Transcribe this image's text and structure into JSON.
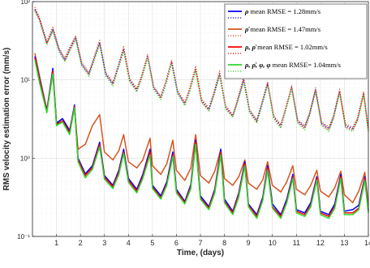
{
  "chart_data": {
    "type": "line",
    "xlabel": "Time, (days)",
    "ylabel": "RMS velocity estimation error (mm/s)",
    "xlim": [
      0,
      14
    ],
    "ylim": [
      0.1,
      100
    ],
    "yscale": "log",
    "grid": true,
    "legend_position": "top-right",
    "x_ticks": [
      1,
      2,
      3,
      4,
      5,
      6,
      7,
      8,
      9,
      10,
      11,
      12,
      13,
      14
    ],
    "x_tick_labels": [
      "1",
      "2",
      "3",
      "4",
      "5",
      "6",
      "7",
      "8",
      "9",
      "10",
      "11",
      "12",
      "13",
      "14"
    ],
    "y_ticks": [
      0.1,
      1,
      10,
      100
    ],
    "y_tick_labels": [
      "10⁻¹",
      "10⁰",
      "10¹",
      "10²"
    ],
    "series": [
      {
        "name": "ρ mean RMSE = 1.28mm/s",
        "color": "#0000ff",
        "style": "solid",
        "x": [
          0.1,
          0.3,
          0.6,
          0.85,
          1.0,
          1.25,
          1.55,
          1.75,
          1.9,
          2.2,
          2.5,
          2.8,
          3.0,
          3.35,
          3.6,
          3.8,
          4.0,
          4.35,
          4.6,
          4.9,
          5.0,
          5.35,
          5.6,
          5.85,
          6.0,
          6.35,
          6.6,
          6.8,
          7.0,
          7.35,
          7.6,
          7.85,
          8.0,
          8.35,
          8.6,
          8.85,
          9.0,
          9.35,
          9.6,
          9.8,
          10.0,
          10.35,
          10.6,
          10.85,
          11.0,
          11.35,
          11.6,
          11.85,
          12.0,
          12.35,
          12.6,
          12.85,
          13.0,
          13.35,
          13.6,
          13.85,
          14.0
        ],
        "values": [
          20,
          10,
          4.0,
          14,
          2.8,
          3.2,
          2.2,
          4.8,
          1.0,
          0.63,
          0.8,
          1.6,
          0.6,
          0.45,
          0.7,
          1.3,
          0.55,
          0.4,
          0.62,
          1.3,
          0.45,
          0.33,
          0.5,
          1.2,
          0.4,
          0.28,
          0.46,
          1.7,
          0.33,
          0.24,
          0.4,
          1.3,
          0.3,
          0.21,
          0.36,
          0.9,
          0.26,
          0.19,
          0.32,
          0.8,
          0.26,
          0.19,
          0.3,
          0.62,
          0.22,
          0.2,
          0.27,
          0.58,
          0.21,
          0.19,
          0.26,
          0.62,
          0.21,
          0.22,
          0.25,
          0.58,
          0.22
        ]
      },
      {
        "name": "ρ mean RMSE = 1.28mm/s",
        "color": "#0000ff",
        "style": "dotted",
        "x": [
          0.1,
          0.3,
          0.6,
          0.85,
          1.1,
          1.35,
          1.55,
          1.8,
          2.05,
          2.35,
          2.55,
          2.8,
          3.05,
          3.35,
          3.55,
          3.8,
          4.05,
          4.35,
          4.55,
          4.8,
          5.05,
          5.35,
          5.55,
          5.8,
          6.05,
          6.35,
          6.55,
          6.8,
          7.05,
          7.35,
          7.55,
          7.8,
          8.05,
          8.35,
          8.55,
          8.8,
          9.05,
          9.35,
          9.55,
          9.8,
          10.05,
          10.35,
          10.55,
          10.8,
          11.05,
          11.35,
          11.55,
          11.8,
          12.05,
          12.35,
          12.55,
          12.8,
          13.05,
          13.35,
          13.55,
          13.8,
          14.0
        ],
        "values": [
          80,
          60,
          30,
          45,
          25,
          18,
          25,
          35,
          16,
          12,
          18,
          30,
          12,
          9,
          14,
          25,
          10,
          7.5,
          11,
          20,
          8,
          6,
          9,
          17,
          7,
          5,
          7.5,
          14,
          5.5,
          4.2,
          6.5,
          12,
          4.5,
          3.5,
          5.5,
          10,
          4.0,
          3.0,
          4.8,
          9.0,
          3.4,
          2.6,
          4.2,
          8.0,
          3.0,
          2.5,
          3.7,
          7.5,
          2.8,
          2.4,
          3.4,
          7.2,
          2.6,
          2.4,
          3.2,
          6.8,
          2.3
        ]
      },
      {
        "name": "ρ̇ mean RMSE = 1.47mm/s",
        "color": "#d9531e",
        "style": "solid",
        "x": [
          0.1,
          0.3,
          0.6,
          0.85,
          1.0,
          1.25,
          1.55,
          1.75,
          1.9,
          2.2,
          2.5,
          2.8,
          3.0,
          3.35,
          3.6,
          3.8,
          4.0,
          4.35,
          4.6,
          4.9,
          5.0,
          5.35,
          5.6,
          5.85,
          6.0,
          6.35,
          6.6,
          6.8,
          7.0,
          7.35,
          7.6,
          7.85,
          8.0,
          8.35,
          8.6,
          8.85,
          9.0,
          9.35,
          9.6,
          9.8,
          10.0,
          10.35,
          10.6,
          10.85,
          11.0,
          11.35,
          11.6,
          11.85,
          12.0,
          12.35,
          12.6,
          12.85,
          13.0,
          13.35,
          13.6,
          13.85,
          14.0
        ],
        "values": [
          22,
          11,
          4.2,
          12,
          2.8,
          3.2,
          2.3,
          4.3,
          1.3,
          1.5,
          2.6,
          3.6,
          1.2,
          0.95,
          1.25,
          2.0,
          0.9,
          0.75,
          0.95,
          1.8,
          0.8,
          0.62,
          0.85,
          1.7,
          0.7,
          0.52,
          0.75,
          2.0,
          0.6,
          0.48,
          0.68,
          1.3,
          0.55,
          0.45,
          0.58,
          0.95,
          0.48,
          0.4,
          0.53,
          0.9,
          0.45,
          0.37,
          0.5,
          0.8,
          0.4,
          0.34,
          0.45,
          0.7,
          0.38,
          0.32,
          0.42,
          0.68,
          0.34,
          0.27,
          0.38,
          0.66,
          0.25
        ]
      },
      {
        "name": "ρ̇ mean RMSE = 1.47mm/s",
        "color": "#d9531e",
        "style": "dotted",
        "x": [
          0.1,
          0.3,
          0.6,
          0.85,
          1.1,
          1.35,
          1.55,
          1.8,
          2.05,
          2.35,
          2.55,
          2.8,
          3.05,
          3.35,
          3.55,
          3.8,
          4.05,
          4.35,
          4.55,
          4.8,
          5.05,
          5.35,
          5.55,
          5.8,
          6.05,
          6.35,
          6.55,
          6.8,
          7.05,
          7.35,
          7.55,
          7.8,
          8.05,
          8.35,
          8.55,
          8.8,
          9.05,
          9.35,
          9.55,
          9.8,
          10.05,
          10.35,
          10.55,
          10.8,
          11.05,
          11.35,
          11.55,
          11.8,
          12.05,
          12.35,
          12.55,
          12.8,
          13.05,
          13.35,
          13.55,
          13.8,
          14.0
        ],
        "values": [
          85,
          62,
          31,
          48,
          26,
          19,
          26,
          37,
          17,
          12.5,
          19,
          32,
          12.5,
          9.4,
          14.5,
          27,
          10.5,
          7.8,
          11.5,
          21,
          8.3,
          6.2,
          9.4,
          18,
          7.3,
          5.2,
          7.8,
          15,
          5.7,
          4.4,
          6.8,
          13,
          4.7,
          3.6,
          5.7,
          11,
          4.2,
          3.1,
          5.0,
          9.5,
          3.5,
          2.7,
          4.4,
          8.4,
          3.1,
          2.6,
          3.8,
          7.9,
          2.9,
          2.5,
          3.5,
          7.6,
          2.7,
          2.5,
          3.3,
          7.1,
          2.4
        ]
      },
      {
        "name": "ρ, ρ̇ mean RMSE = 1.02mm/s",
        "color": "#ff0000",
        "style": "solid",
        "x": [
          0.1,
          0.3,
          0.6,
          0.85,
          1.0,
          1.25,
          1.55,
          1.75,
          1.9,
          2.2,
          2.5,
          2.8,
          3.0,
          3.35,
          3.6,
          3.8,
          4.0,
          4.35,
          4.6,
          4.9,
          5.0,
          5.35,
          5.6,
          5.85,
          6.0,
          6.35,
          6.6,
          6.8,
          7.0,
          7.35,
          7.6,
          7.85,
          8.0,
          8.35,
          8.6,
          8.85,
          9.0,
          9.35,
          9.6,
          9.8,
          10.0,
          10.35,
          10.6,
          10.85,
          11.0,
          11.35,
          11.6,
          11.85,
          12.0,
          12.35,
          12.6,
          12.85,
          13.0,
          13.35,
          13.6,
          13.85,
          14.0
        ],
        "values": [
          19,
          9.5,
          3.9,
          13,
          2.7,
          3.0,
          2.1,
          4.6,
          0.95,
          0.6,
          0.76,
          1.5,
          0.57,
          0.43,
          0.66,
          1.2,
          0.52,
          0.38,
          0.58,
          1.2,
          0.43,
          0.31,
          0.47,
          1.1,
          0.38,
          0.27,
          0.43,
          1.6,
          0.31,
          0.23,
          0.38,
          1.2,
          0.28,
          0.2,
          0.34,
          0.85,
          0.25,
          0.18,
          0.3,
          0.75,
          0.24,
          0.18,
          0.28,
          0.58,
          0.21,
          0.19,
          0.25,
          0.55,
          0.2,
          0.18,
          0.24,
          0.58,
          0.2,
          0.2,
          0.23,
          0.55,
          0.21
        ]
      },
      {
        "name": "ρ, ρ̇ mean RMSE = 1.02mm/s",
        "color": "#ff0000",
        "style": "dotted",
        "x": [
          0.1,
          0.3,
          0.6,
          0.85,
          1.1,
          1.35,
          1.55,
          1.8,
          2.05,
          2.35,
          2.55,
          2.8,
          3.05,
          3.35,
          3.55,
          3.8,
          4.05,
          4.35,
          4.55,
          4.8,
          5.05,
          5.35,
          5.55,
          5.8,
          6.05,
          6.35,
          6.55,
          6.8,
          7.05,
          7.35,
          7.55,
          7.8,
          8.05,
          8.35,
          8.55,
          8.8,
          9.05,
          9.35,
          9.55,
          9.8,
          10.05,
          10.35,
          10.55,
          10.8,
          11.05,
          11.35,
          11.55,
          11.8,
          12.05,
          12.35,
          12.55,
          12.8,
          13.05,
          13.35,
          13.55,
          13.8,
          14.0
        ],
        "values": [
          78,
          58,
          29,
          43,
          24,
          17.5,
          24,
          34,
          15.5,
          11.6,
          17.5,
          29,
          11.6,
          8.7,
          13.5,
          24,
          9.7,
          7.3,
          10.7,
          19.4,
          7.8,
          5.8,
          8.7,
          16.5,
          6.8,
          4.9,
          7.3,
          13.6,
          5.3,
          4.1,
          6.3,
          11.6,
          4.4,
          3.4,
          5.3,
          9.7,
          3.9,
          2.9,
          4.7,
          8.7,
          3.3,
          2.5,
          4.1,
          7.8,
          2.9,
          2.4,
          3.6,
          7.3,
          2.7,
          2.3,
          3.3,
          7.0,
          2.5,
          2.3,
          3.1,
          6.6,
          2.2
        ]
      },
      {
        "name": "ρ, ρ̇, φ, φ mean RMSE= 1.04mm/s",
        "color": "#2bd82b",
        "style": "solid",
        "x": [
          0.1,
          0.3,
          0.6,
          0.85,
          1.0,
          1.25,
          1.55,
          1.75,
          1.9,
          2.2,
          2.5,
          2.8,
          3.0,
          3.35,
          3.6,
          3.8,
          4.0,
          4.35,
          4.6,
          4.9,
          5.0,
          5.35,
          5.6,
          5.85,
          6.0,
          6.35,
          6.6,
          6.8,
          7.0,
          7.35,
          7.6,
          7.85,
          8.0,
          8.35,
          8.6,
          8.85,
          9.0,
          9.35,
          9.6,
          9.8,
          10.0,
          10.35,
          10.6,
          10.85,
          11.0,
          11.35,
          11.6,
          11.85,
          12.0,
          12.35,
          12.6,
          12.85,
          13.0,
          13.35,
          13.6,
          13.85,
          14.0
        ],
        "values": [
          18,
          9.0,
          3.8,
          12,
          2.6,
          2.9,
          2.0,
          4.4,
          0.9,
          0.56,
          0.72,
          1.4,
          0.54,
          0.41,
          0.62,
          1.15,
          0.49,
          0.36,
          0.55,
          1.1,
          0.41,
          0.3,
          0.45,
          1.05,
          0.36,
          0.26,
          0.41,
          1.5,
          0.3,
          0.22,
          0.36,
          1.1,
          0.27,
          0.19,
          0.32,
          0.8,
          0.24,
          0.17,
          0.29,
          0.7,
          0.23,
          0.17,
          0.27,
          0.55,
          0.2,
          0.18,
          0.24,
          0.52,
          0.19,
          0.17,
          0.23,
          0.55,
          0.19,
          0.19,
          0.22,
          0.52,
          0.2
        ]
      },
      {
        "name": "ρ, ρ̇, φ, φ mean RMSE= 1.04mm/s",
        "color": "#2bd82b",
        "style": "dotted",
        "x": [
          0.1,
          0.3,
          0.6,
          0.85,
          1.1,
          1.35,
          1.55,
          1.8,
          2.05,
          2.35,
          2.55,
          2.8,
          3.05,
          3.35,
          3.55,
          3.8,
          4.05,
          4.35,
          4.55,
          4.8,
          5.05,
          5.35,
          5.55,
          5.8,
          6.05,
          6.35,
          6.55,
          6.8,
          7.05,
          7.35,
          7.55,
          7.8,
          8.05,
          8.35,
          8.55,
          8.8,
          9.05,
          9.35,
          9.55,
          9.8,
          10.05,
          10.35,
          10.55,
          10.8,
          11.05,
          11.35,
          11.55,
          11.8,
          12.05,
          12.35,
          12.55,
          12.8,
          13.05,
          13.35,
          13.55,
          13.8,
          14.0
        ],
        "values": [
          76,
          56,
          28,
          42,
          23,
          17,
          23,
          33,
          15,
          11.2,
          17,
          28,
          11.2,
          8.4,
          13,
          23,
          9.4,
          7.0,
          10.3,
          18.8,
          7.5,
          5.6,
          8.4,
          16,
          6.6,
          4.7,
          7.0,
          13.2,
          5.1,
          4.0,
          6.1,
          11.2,
          4.2,
          3.3,
          5.1,
          9.4,
          3.8,
          2.8,
          4.5,
          8.4,
          3.2,
          2.4,
          4.0,
          7.5,
          2.8,
          2.3,
          3.5,
          7.0,
          2.6,
          2.2,
          3.2,
          6.8,
          2.4,
          2.2,
          3.0,
          6.4,
          2.1
        ]
      }
    ]
  },
  "legend": {
    "entries": [
      {
        "symbol": "ρ",
        "text": " mean RMSE = 1.28mm/s",
        "color": "#0000ff"
      },
      {
        "symbol": "ρ̇",
        "text": " mean RMSE = 1.47mm/s",
        "color": "#d9531e"
      },
      {
        "symbol": "ρ, ρ̇",
        "text": " mean RMSE = 1.02mm/s",
        "color": "#ff0000"
      },
      {
        "symbol": "ρ, ρ̇, φ, φ",
        "text": " mean RMSE= 1.04mm/s",
        "color": "#2bd82b"
      }
    ]
  }
}
